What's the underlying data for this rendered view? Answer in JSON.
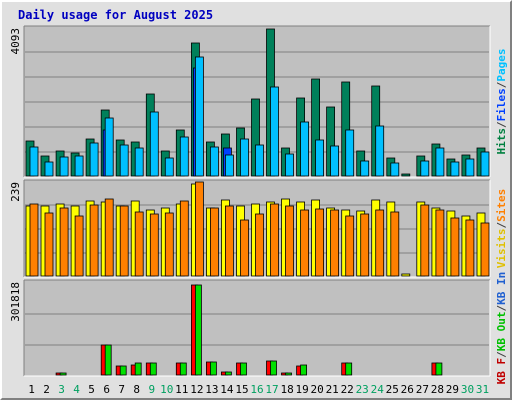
{
  "page": {
    "title": "Daily usage for August 2025"
  },
  "chart_data": [
    {
      "type": "bar",
      "ymax_label": "4093",
      "ylim": [
        0,
        4093
      ],
      "grid": true,
      "categories": [
        "1",
        "2",
        "3",
        "4",
        "5",
        "6",
        "7",
        "8",
        "9",
        "10",
        "11",
        "12",
        "13",
        "14",
        "15",
        "16",
        "17",
        "18",
        "19",
        "20",
        "21",
        "22",
        "23",
        "24",
        "25",
        "26",
        "27",
        "28",
        "29",
        "30",
        "31"
      ],
      "legend": [
        {
          "text": "Hits",
          "color": "#008040"
        },
        {
          "text": "/",
          "color": "#404040"
        },
        {
          "text": "Files",
          "color": "#0040ff"
        },
        {
          "text": "/",
          "color": "#404040"
        },
        {
          "text": "Pages",
          "color": "#00c0ff"
        }
      ],
      "series": [
        {
          "name": "Hits",
          "color": "#00805a",
          "values": [
            950,
            560,
            700,
            640,
            1020,
            1800,
            1000,
            940,
            2250,
            680,
            1270,
            3660,
            930,
            1140,
            1320,
            2120,
            4030,
            760,
            2130,
            2660,
            1900,
            2580,
            680,
            2480,
            490,
            50,
            540,
            880,
            480,
            580,
            770
          ]
        },
        {
          "name": "Files",
          "color": "#0040ff",
          "values": [
            0,
            0,
            0,
            0,
            0,
            1270,
            0,
            0,
            0,
            0,
            0,
            2980,
            0,
            780,
            0,
            0,
            0,
            0,
            0,
            0,
            0,
            0,
            0,
            0,
            0,
            0,
            0,
            0,
            0,
            0,
            0
          ]
        },
        {
          "name": "Pages",
          "color": "#00c0ff",
          "values": [
            810,
            380,
            510,
            560,
            910,
            1600,
            840,
            770,
            1750,
            500,
            1060,
            3270,
            800,
            570,
            1010,
            850,
            2450,
            610,
            1490,
            990,
            820,
            1260,
            410,
            1380,
            370,
            0,
            400,
            780,
            390,
            470,
            650
          ]
        }
      ]
    },
    {
      "type": "bar",
      "ymax_label": "239",
      "ylim": [
        0,
        239
      ],
      "grid": true,
      "categories": [
        "1",
        "2",
        "3",
        "4",
        "5",
        "6",
        "7",
        "8",
        "9",
        "10",
        "11",
        "12",
        "13",
        "14",
        "15",
        "16",
        "17",
        "18",
        "19",
        "20",
        "21",
        "22",
        "23",
        "24",
        "25",
        "26",
        "27",
        "28",
        "29",
        "30",
        "31"
      ],
      "legend": [
        {
          "text": "Visits",
          "color": "#e0c000"
        },
        {
          "text": "/",
          "color": "#404040"
        },
        {
          "text": "Sites",
          "color": "#ff8000"
        }
      ],
      "series": [
        {
          "name": "Visits",
          "color": "#ffff00",
          "values": [
            175,
            176,
            180,
            175,
            188,
            186,
            175,
            189,
            165,
            170,
            181,
            232,
            172,
            190,
            176,
            181,
            186,
            193,
            186,
            190,
            171,
            165,
            164,
            191,
            187,
            5,
            187,
            172,
            164,
            151,
            159
          ]
        },
        {
          "name": "Sites",
          "color": "#ff8000",
          "values": [
            180,
            158,
            170,
            152,
            178,
            194,
            177,
            162,
            157,
            159,
            188,
            236,
            170,
            175,
            142,
            155,
            181,
            177,
            167,
            168,
            166,
            150,
            155,
            165,
            161,
            0,
            178,
            167,
            145,
            140,
            133
          ]
        }
      ]
    },
    {
      "type": "bar",
      "ymax_label": "301818",
      "ylim": [
        0,
        301818
      ],
      "grid": true,
      "categories": [
        "1",
        "2",
        "3",
        "4",
        "5",
        "6",
        "7",
        "8",
        "9",
        "10",
        "11",
        "12",
        "13",
        "14",
        "15",
        "16",
        "17",
        "18",
        "19",
        "20",
        "21",
        "22",
        "23",
        "24",
        "25",
        "26",
        "27",
        "28",
        "29",
        "30",
        "31"
      ],
      "legend": [
        {
          "text": "KB F",
          "color": "#c00000"
        },
        {
          "text": "/",
          "color": "#404040"
        },
        {
          "text": "KB Out",
          "color": "#00c000"
        },
        {
          "text": "/",
          "color": "#404040"
        },
        {
          "text": "KB In",
          "color": "#2060d0"
        }
      ],
      "series": [
        {
          "name": "KB F",
          "color": "#ff0000",
          "values": [
            0,
            0,
            5000,
            0,
            0,
            95000,
            30000,
            33000,
            38000,
            0,
            37000,
            290000,
            42000,
            10000,
            38000,
            0,
            45000,
            8000,
            30000,
            0,
            0,
            40000,
            0,
            0,
            0,
            0,
            0,
            40000,
            0,
            0,
            0
          ]
        },
        {
          "name": "KB Out",
          "color": "#00e000",
          "values": [
            0,
            0,
            6000,
            0,
            0,
            95000,
            30000,
            38000,
            40000,
            0,
            37000,
            290000,
            42000,
            10000,
            38000,
            0,
            45000,
            8000,
            32000,
            0,
            0,
            40000,
            0,
            0,
            0,
            0,
            0,
            40000,
            0,
            0,
            0
          ]
        },
        {
          "name": "KB In",
          "color": "#0080ff",
          "values": [
            0,
            0,
            0,
            0,
            0,
            0,
            0,
            0,
            0,
            0,
            0,
            0,
            0,
            0,
            0,
            0,
            0,
            0,
            0,
            0,
            0,
            0,
            0,
            0,
            0,
            0,
            0,
            0,
            0,
            0,
            0
          ]
        }
      ]
    }
  ],
  "x_axis": {
    "labels": [
      "1",
      "2",
      "3",
      "4",
      "5",
      "6",
      "7",
      "8",
      "9",
      "10",
      "11",
      "12",
      "13",
      "14",
      "15",
      "16",
      "17",
      "18",
      "19",
      "20",
      "21",
      "22",
      "23",
      "24",
      "25",
      "26",
      "27",
      "28",
      "29",
      "30",
      "31"
    ],
    "weekend": [
      false,
      false,
      true,
      true,
      false,
      false,
      false,
      false,
      true,
      true,
      false,
      false,
      false,
      false,
      false,
      true,
      true,
      false,
      false,
      false,
      false,
      false,
      true,
      true,
      false,
      false,
      false,
      false,
      false,
      true,
      true
    ],
    "weekday_color": "#000000",
    "weekend_color": "#00a060"
  }
}
